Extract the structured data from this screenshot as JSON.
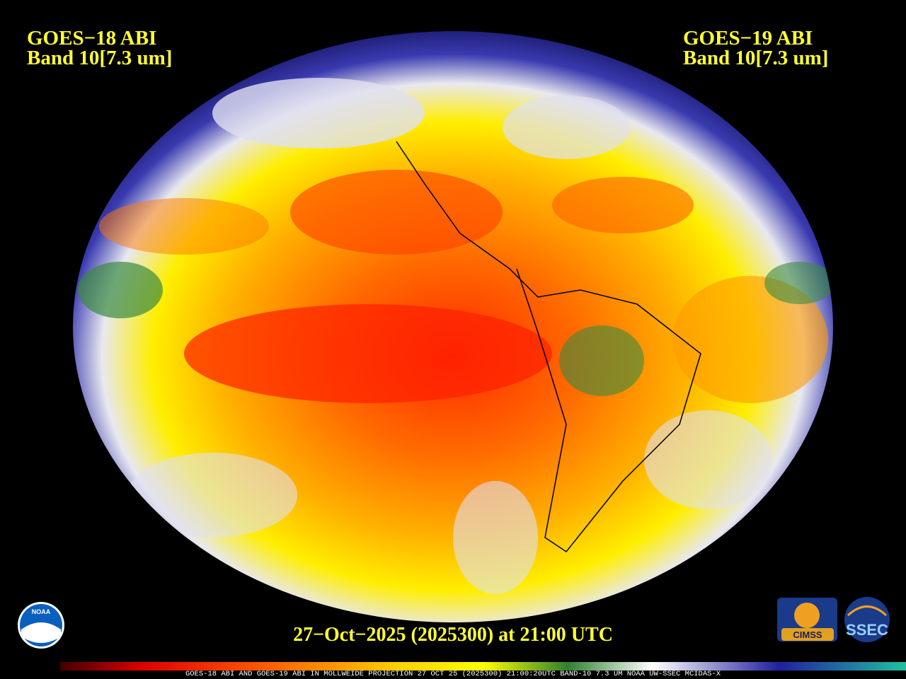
{
  "left_label": {
    "satellite": "GOES−18 ABI",
    "band": "Band 10[7.3 um]"
  },
  "right_label": {
    "satellite": "GOES−19 ABI",
    "band": "Band 10[7.3 um]"
  },
  "timestamp": "27−Oct−2025 (2025300) at 21:00 UTC",
  "logos": {
    "noaa": "NOAA",
    "cimss": "CIMSS",
    "ssec": "SSEC"
  },
  "footer": "GOES-18 ABI AND GOES-19 ABI IN MOLLWEIDE PROJECTION 27 OCT 25 (2025300) 21:00:20UTC BAND-10 7.3 UM NOAA UW-SSEC MCIDAS-X"
}
